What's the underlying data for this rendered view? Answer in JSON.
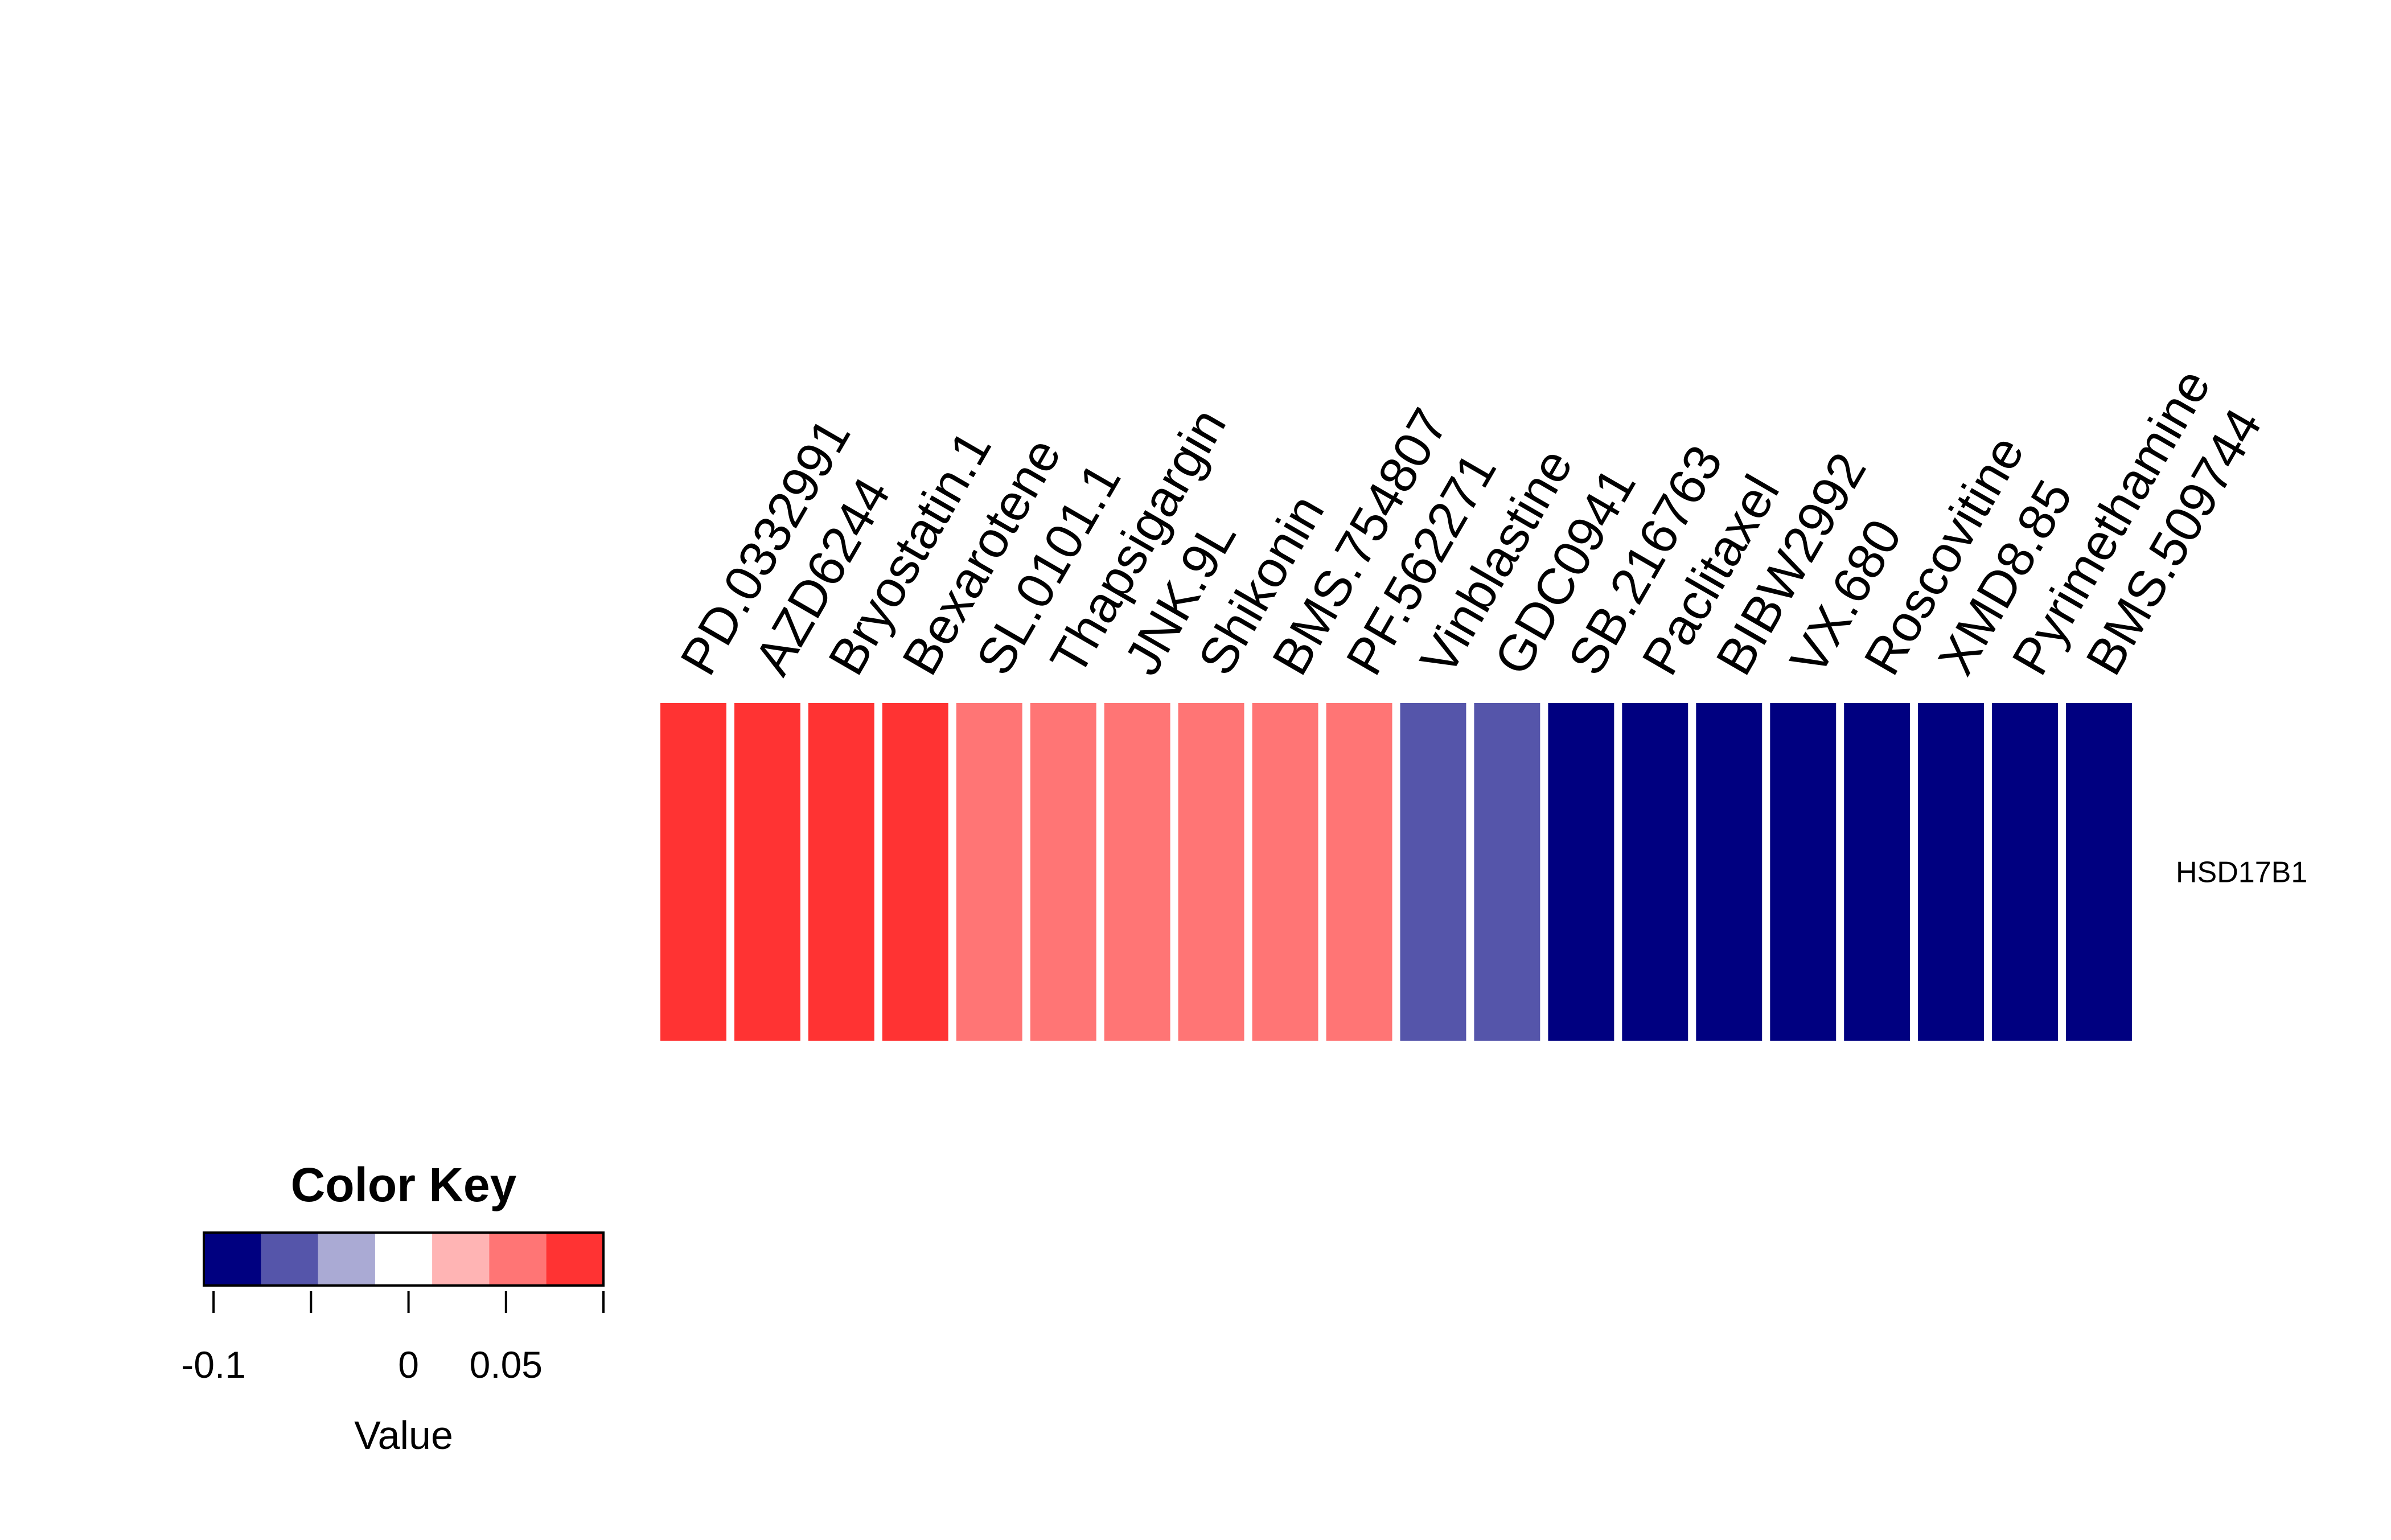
{
  "chart_data": {
    "type": "heatmap",
    "rows": [
      "HSD17B1"
    ],
    "columns": [
      "PD.0332991",
      "AZD6244",
      "Bryostatin.1",
      "Bexarotene",
      "SL.0101.1",
      "Thapsigargin",
      "JNK.9L",
      "Shikonin",
      "BMS.754807",
      "PF.562271",
      "Vinblastine",
      "GDC0941",
      "SB.216763",
      "Paclitaxel",
      "BIBW2992",
      "VX.680",
      "Roscovitine",
      "XMD8.85",
      "Pyrimethamine",
      "BMS.509744"
    ],
    "values": [
      [
        0.08,
        0.08,
        0.08,
        0.08,
        0.05,
        0.05,
        0.05,
        0.05,
        0.05,
        0.05,
        -0.07,
        -0.07,
        -0.1,
        -0.1,
        -0.1,
        -0.1,
        -0.1,
        -0.1,
        -0.1,
        -0.1
      ]
    ],
    "color_key": {
      "title": "Color Key",
      "xlabel": "Value",
      "range": [
        -0.105,
        0.1
      ],
      "tick_labels": [
        {
          "label": "-0.1",
          "value": -0.1
        },
        {
          "label": "0",
          "value": 0
        },
        {
          "label": "0.05",
          "value": 0.05
        }
      ],
      "colors": [
        "#000080",
        "#5555AA",
        "#AAAAD4",
        "#FFFFFF",
        "#FFB4B4",
        "#FF7575",
        "#FF3333"
      ]
    }
  }
}
